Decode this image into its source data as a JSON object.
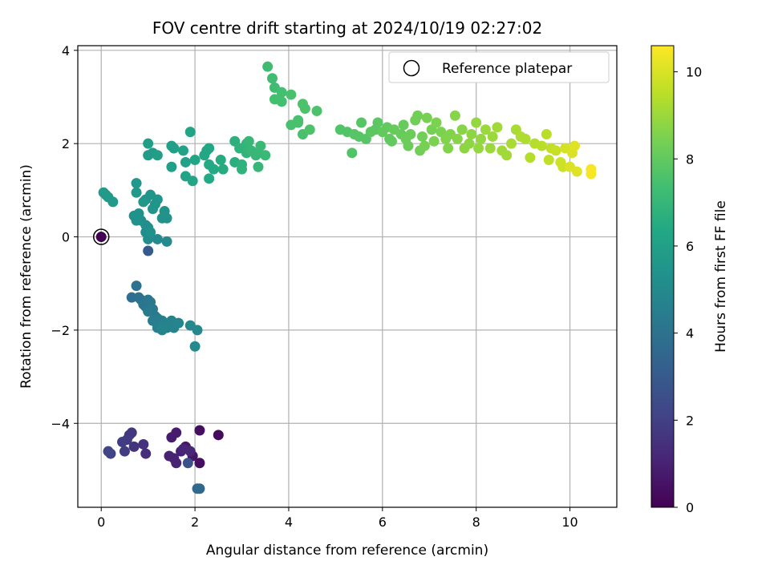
{
  "chart_data": {
    "type": "scatter",
    "title": "FOV centre drift starting at 2024/10/19 02:27:02",
    "xlabel": "Angular distance from reference (arcmin)",
    "ylabel": "Rotation from reference (arcmin)",
    "xlim": [
      -0.5,
      11
    ],
    "ylim": [
      -5.8,
      4.1
    ],
    "xticks": [
      0,
      2,
      4,
      6,
      8,
      10
    ],
    "yticks": [
      -4,
      -2,
      0,
      2,
      4
    ],
    "grid": true,
    "legend": {
      "entries": [
        "Reference platepar"
      ],
      "placement": "top-right"
    },
    "colorbar": {
      "label": "Hours from first FF file",
      "range": [
        0,
        10.6
      ],
      "ticks": [
        0,
        2,
        4,
        6,
        8,
        10
      ],
      "colormap": "viridis"
    },
    "reference_point": {
      "x": 0,
      "y": 0,
      "h": 0.0
    },
    "points": [
      {
        "x": 2.5,
        "y": -4.25,
        "h": 0.3
      },
      {
        "x": 2.1,
        "y": -4.15,
        "h": 0.4
      },
      {
        "x": 2.1,
        "y": -4.85,
        "h": 0.4
      },
      {
        "x": 1.95,
        "y": -4.7,
        "h": 0.6
      },
      {
        "x": 1.8,
        "y": -4.5,
        "h": 0.7
      },
      {
        "x": 1.6,
        "y": -4.2,
        "h": 0.8
      },
      {
        "x": 1.5,
        "y": -4.3,
        "h": 0.8
      },
      {
        "x": 1.7,
        "y": -4.6,
        "h": 0.9
      },
      {
        "x": 1.55,
        "y": -4.75,
        "h": 1.0
      },
      {
        "x": 1.45,
        "y": -4.7,
        "h": 1.0
      },
      {
        "x": 1.6,
        "y": -4.85,
        "h": 1.0
      },
      {
        "x": 1.75,
        "y": -4.55,
        "h": 1.1
      },
      {
        "x": 1.9,
        "y": -4.6,
        "h": 1.2
      },
      {
        "x": 0.95,
        "y": -4.65,
        "h": 1.4
      },
      {
        "x": 0.9,
        "y": -4.45,
        "h": 1.5
      },
      {
        "x": 0.7,
        "y": -4.5,
        "h": 1.6
      },
      {
        "x": 0.6,
        "y": -4.25,
        "h": 1.6
      },
      {
        "x": 0.65,
        "y": -4.2,
        "h": 1.7
      },
      {
        "x": 0.55,
        "y": -4.35,
        "h": 1.8
      },
      {
        "x": 0.45,
        "y": -4.4,
        "h": 1.9
      },
      {
        "x": 0.5,
        "y": -4.6,
        "h": 1.9
      },
      {
        "x": 0.2,
        "y": -4.65,
        "h": 2.1
      },
      {
        "x": 0.15,
        "y": -4.6,
        "h": 2.2
      },
      {
        "x": 1.85,
        "y": -4.85,
        "h": 2.6
      },
      {
        "x": 1.0,
        "y": -0.3,
        "h": 3.0
      },
      {
        "x": 2.1,
        "y": -5.4,
        "h": 3.5
      },
      {
        "x": 2.05,
        "y": -5.4,
        "h": 3.6
      },
      {
        "x": 0.65,
        "y": -1.3,
        "h": 3.8
      },
      {
        "x": 0.8,
        "y": -1.3,
        "h": 3.9
      },
      {
        "x": 0.75,
        "y": -1.05,
        "h": 4.0
      },
      {
        "x": 0.85,
        "y": -1.35,
        "h": 4.0
      },
      {
        "x": 0.9,
        "y": -1.45,
        "h": 4.1
      },
      {
        "x": 0.95,
        "y": -1.5,
        "h": 4.1
      },
      {
        "x": 1.0,
        "y": -1.35,
        "h": 4.2
      },
      {
        "x": 1.05,
        "y": -1.4,
        "h": 4.2
      },
      {
        "x": 1.1,
        "y": -1.55,
        "h": 4.3
      },
      {
        "x": 1.15,
        "y": -1.7,
        "h": 4.3
      },
      {
        "x": 1.2,
        "y": -1.75,
        "h": 4.4
      },
      {
        "x": 1.0,
        "y": -1.6,
        "h": 4.4
      },
      {
        "x": 1.1,
        "y": -1.8,
        "h": 4.5
      },
      {
        "x": 1.3,
        "y": -1.8,
        "h": 4.5
      },
      {
        "x": 1.4,
        "y": -1.95,
        "h": 4.6
      },
      {
        "x": 1.2,
        "y": -1.95,
        "h": 4.6
      },
      {
        "x": 1.35,
        "y": -1.85,
        "h": 4.7
      },
      {
        "x": 1.5,
        "y": -1.8,
        "h": 4.7
      },
      {
        "x": 1.55,
        "y": -1.95,
        "h": 4.7
      },
      {
        "x": 1.65,
        "y": -1.85,
        "h": 4.8
      },
      {
        "x": 1.9,
        "y": -1.9,
        "h": 4.9
      },
      {
        "x": 2.05,
        "y": -2.0,
        "h": 4.9
      },
      {
        "x": 2.0,
        "y": -2.35,
        "h": 5.0
      },
      {
        "x": 1.3,
        "y": -2.0,
        "h": 4.8
      },
      {
        "x": 1.4,
        "y": -0.1,
        "h": 5.0
      },
      {
        "x": 1.2,
        "y": -0.05,
        "h": 5.0
      },
      {
        "x": 1.0,
        "y": -0.05,
        "h": 5.1
      },
      {
        "x": 0.95,
        "y": 0.1,
        "h": 5.1
      },
      {
        "x": 1.0,
        "y": 0.2,
        "h": 5.2
      },
      {
        "x": 0.95,
        "y": 0.25,
        "h": 5.2
      },
      {
        "x": 0.85,
        "y": 0.35,
        "h": 5.2
      },
      {
        "x": 0.75,
        "y": 0.35,
        "h": 5.3
      },
      {
        "x": 0.7,
        "y": 0.45,
        "h": 5.3
      },
      {
        "x": 0.8,
        "y": 0.5,
        "h": 5.3
      },
      {
        "x": 1.05,
        "y": 0.1,
        "h": 5.3
      },
      {
        "x": 1.3,
        "y": 0.4,
        "h": 5.4
      },
      {
        "x": 1.4,
        "y": 0.4,
        "h": 5.4
      },
      {
        "x": 1.35,
        "y": 0.55,
        "h": 5.4
      },
      {
        "x": 1.15,
        "y": 0.7,
        "h": 5.5
      },
      {
        "x": 1.1,
        "y": 0.6,
        "h": 5.5
      },
      {
        "x": 1.2,
        "y": 0.8,
        "h": 5.5
      },
      {
        "x": 1.05,
        "y": 0.9,
        "h": 5.5
      },
      {
        "x": 0.95,
        "y": 0.8,
        "h": 5.5
      },
      {
        "x": 0.9,
        "y": 0.75,
        "h": 5.6
      },
      {
        "x": 0.75,
        "y": 0.95,
        "h": 5.6
      },
      {
        "x": 0.75,
        "y": 1.15,
        "h": 5.6
      },
      {
        "x": 0.25,
        "y": 0.75,
        "h": 5.7
      },
      {
        "x": 0.15,
        "y": 0.85,
        "h": 5.7
      },
      {
        "x": 0.1,
        "y": 0.9,
        "h": 5.7
      },
      {
        "x": 0.05,
        "y": 0.95,
        "h": 5.7
      },
      {
        "x": 1.0,
        "y": 1.75,
        "h": 5.8
      },
      {
        "x": 1.1,
        "y": 1.8,
        "h": 5.8
      },
      {
        "x": 1.2,
        "y": 1.75,
        "h": 5.9
      },
      {
        "x": 1.0,
        "y": 2.0,
        "h": 5.9
      },
      {
        "x": 1.5,
        "y": 1.5,
        "h": 6.0
      },
      {
        "x": 1.5,
        "y": 1.95,
        "h": 6.0
      },
      {
        "x": 1.55,
        "y": 1.9,
        "h": 6.0
      },
      {
        "x": 1.75,
        "y": 1.85,
        "h": 6.1
      },
      {
        "x": 1.8,
        "y": 1.6,
        "h": 6.1
      },
      {
        "x": 1.8,
        "y": 1.3,
        "h": 6.1
      },
      {
        "x": 1.9,
        "y": 2.25,
        "h": 6.2
      },
      {
        "x": 1.95,
        "y": 1.2,
        "h": 6.2
      },
      {
        "x": 2.0,
        "y": 1.65,
        "h": 6.2
      },
      {
        "x": 2.2,
        "y": 1.75,
        "h": 6.3
      },
      {
        "x": 2.25,
        "y": 1.85,
        "h": 6.3
      },
      {
        "x": 2.3,
        "y": 1.9,
        "h": 6.3
      },
      {
        "x": 2.3,
        "y": 1.55,
        "h": 6.4
      },
      {
        "x": 2.3,
        "y": 1.25,
        "h": 6.4
      },
      {
        "x": 2.4,
        "y": 1.45,
        "h": 6.4
      },
      {
        "x": 2.55,
        "y": 1.65,
        "h": 6.5
      },
      {
        "x": 2.6,
        "y": 1.45,
        "h": 6.5
      },
      {
        "x": 2.85,
        "y": 1.6,
        "h": 6.6
      },
      {
        "x": 2.85,
        "y": 2.05,
        "h": 6.7
      },
      {
        "x": 2.95,
        "y": 1.9,
        "h": 6.8
      },
      {
        "x": 3.0,
        "y": 1.55,
        "h": 6.8
      },
      {
        "x": 3.0,
        "y": 1.45,
        "h": 6.8
      },
      {
        "x": 3.1,
        "y": 2.0,
        "h": 6.9
      },
      {
        "x": 3.1,
        "y": 1.8,
        "h": 6.9
      },
      {
        "x": 3.15,
        "y": 2.05,
        "h": 7.0
      },
      {
        "x": 3.2,
        "y": 1.85,
        "h": 7.0
      },
      {
        "x": 3.3,
        "y": 1.75,
        "h": 7.0
      },
      {
        "x": 3.35,
        "y": 1.5,
        "h": 7.0
      },
      {
        "x": 3.35,
        "y": 1.8,
        "h": 7.0
      },
      {
        "x": 3.4,
        "y": 1.95,
        "h": 7.1
      },
      {
        "x": 3.5,
        "y": 1.75,
        "h": 7.1
      },
      {
        "x": 3.55,
        "y": 3.65,
        "h": 7.3
      },
      {
        "x": 3.65,
        "y": 3.4,
        "h": 7.3
      },
      {
        "x": 3.7,
        "y": 3.2,
        "h": 7.3
      },
      {
        "x": 3.7,
        "y": 2.95,
        "h": 7.4
      },
      {
        "x": 3.85,
        "y": 2.9,
        "h": 7.4
      },
      {
        "x": 3.85,
        "y": 3.1,
        "h": 7.4
      },
      {
        "x": 4.05,
        "y": 3.05,
        "h": 7.5
      },
      {
        "x": 4.05,
        "y": 2.4,
        "h": 7.5
      },
      {
        "x": 4.2,
        "y": 2.45,
        "h": 7.5
      },
      {
        "x": 4.3,
        "y": 2.2,
        "h": 7.5
      },
      {
        "x": 4.3,
        "y": 2.85,
        "h": 7.6
      },
      {
        "x": 4.35,
        "y": 2.75,
        "h": 7.6
      },
      {
        "x": 4.45,
        "y": 2.3,
        "h": 7.6
      },
      {
        "x": 4.6,
        "y": 2.7,
        "h": 7.6
      },
      {
        "x": 4.2,
        "y": 2.5,
        "h": 7.5
      },
      {
        "x": 5.1,
        "y": 2.3,
        "h": 7.7
      },
      {
        "x": 5.25,
        "y": 2.25,
        "h": 7.7
      },
      {
        "x": 5.35,
        "y": 1.8,
        "h": 7.7
      },
      {
        "x": 5.4,
        "y": 2.2,
        "h": 7.8
      },
      {
        "x": 5.5,
        "y": 2.15,
        "h": 7.8
      },
      {
        "x": 5.55,
        "y": 2.45,
        "h": 7.8
      },
      {
        "x": 5.65,
        "y": 2.1,
        "h": 7.8
      },
      {
        "x": 5.75,
        "y": 2.25,
        "h": 7.9
      },
      {
        "x": 5.85,
        "y": 2.3,
        "h": 7.9
      },
      {
        "x": 5.9,
        "y": 2.45,
        "h": 7.9
      },
      {
        "x": 6.0,
        "y": 2.25,
        "h": 8.0
      },
      {
        "x": 6.1,
        "y": 2.35,
        "h": 8.0
      },
      {
        "x": 6.15,
        "y": 2.1,
        "h": 8.0
      },
      {
        "x": 6.2,
        "y": 2.05,
        "h": 8.0
      },
      {
        "x": 6.25,
        "y": 2.3,
        "h": 8.1
      },
      {
        "x": 6.4,
        "y": 2.2,
        "h": 8.1
      },
      {
        "x": 6.45,
        "y": 2.4,
        "h": 8.1
      },
      {
        "x": 6.5,
        "y": 2.1,
        "h": 8.2
      },
      {
        "x": 6.55,
        "y": 1.95,
        "h": 8.2
      },
      {
        "x": 6.6,
        "y": 2.2,
        "h": 8.2
      },
      {
        "x": 6.7,
        "y": 2.5,
        "h": 8.3
      },
      {
        "x": 6.75,
        "y": 2.6,
        "h": 8.3
      },
      {
        "x": 6.8,
        "y": 1.85,
        "h": 8.3
      },
      {
        "x": 6.85,
        "y": 2.15,
        "h": 8.3
      },
      {
        "x": 6.9,
        "y": 1.95,
        "h": 8.4
      },
      {
        "x": 6.95,
        "y": 2.55,
        "h": 8.4
      },
      {
        "x": 7.05,
        "y": 2.3,
        "h": 8.4
      },
      {
        "x": 7.1,
        "y": 2.05,
        "h": 8.5
      },
      {
        "x": 7.15,
        "y": 2.45,
        "h": 8.5
      },
      {
        "x": 7.25,
        "y": 2.25,
        "h": 8.5
      },
      {
        "x": 7.35,
        "y": 2.1,
        "h": 8.6
      },
      {
        "x": 7.4,
        "y": 1.9,
        "h": 8.6
      },
      {
        "x": 7.45,
        "y": 2.2,
        "h": 8.6
      },
      {
        "x": 7.55,
        "y": 2.6,
        "h": 8.7
      },
      {
        "x": 7.6,
        "y": 2.1,
        "h": 8.7
      },
      {
        "x": 7.7,
        "y": 2.3,
        "h": 8.7
      },
      {
        "x": 7.75,
        "y": 1.9,
        "h": 8.8
      },
      {
        "x": 7.85,
        "y": 2.0,
        "h": 8.8
      },
      {
        "x": 7.9,
        "y": 2.2,
        "h": 8.8
      },
      {
        "x": 8.0,
        "y": 2.45,
        "h": 8.9
      },
      {
        "x": 8.05,
        "y": 1.9,
        "h": 8.9
      },
      {
        "x": 8.1,
        "y": 2.1,
        "h": 8.9
      },
      {
        "x": 8.2,
        "y": 2.3,
        "h": 9.0
      },
      {
        "x": 8.3,
        "y": 1.9,
        "h": 9.0
      },
      {
        "x": 8.35,
        "y": 2.15,
        "h": 9.0
      },
      {
        "x": 8.45,
        "y": 2.35,
        "h": 9.1
      },
      {
        "x": 8.55,
        "y": 1.85,
        "h": 9.1
      },
      {
        "x": 8.65,
        "y": 1.75,
        "h": 9.1
      },
      {
        "x": 8.75,
        "y": 2.0,
        "h": 9.2
      },
      {
        "x": 8.85,
        "y": 2.3,
        "h": 9.2
      },
      {
        "x": 8.95,
        "y": 2.15,
        "h": 9.3
      },
      {
        "x": 9.05,
        "y": 2.1,
        "h": 9.3
      },
      {
        "x": 9.15,
        "y": 1.7,
        "h": 9.4
      },
      {
        "x": 9.25,
        "y": 2.0,
        "h": 9.4
      },
      {
        "x": 9.4,
        "y": 1.95,
        "h": 9.5
      },
      {
        "x": 9.5,
        "y": 2.2,
        "h": 9.5
      },
      {
        "x": 9.55,
        "y": 1.65,
        "h": 9.6
      },
      {
        "x": 9.6,
        "y": 1.9,
        "h": 9.6
      },
      {
        "x": 9.7,
        "y": 1.85,
        "h": 9.7
      },
      {
        "x": 9.8,
        "y": 1.6,
        "h": 9.8
      },
      {
        "x": 9.85,
        "y": 1.5,
        "h": 9.8
      },
      {
        "x": 9.9,
        "y": 1.9,
        "h": 9.9
      },
      {
        "x": 10.0,
        "y": 1.5,
        "h": 10.0
      },
      {
        "x": 10.05,
        "y": 1.8,
        "h": 10.0
      },
      {
        "x": 10.1,
        "y": 1.95,
        "h": 10.1
      },
      {
        "x": 10.15,
        "y": 1.4,
        "h": 10.1
      },
      {
        "x": 10.45,
        "y": 1.45,
        "h": 10.5
      },
      {
        "x": 10.45,
        "y": 1.35,
        "h": 10.5
      }
    ]
  }
}
